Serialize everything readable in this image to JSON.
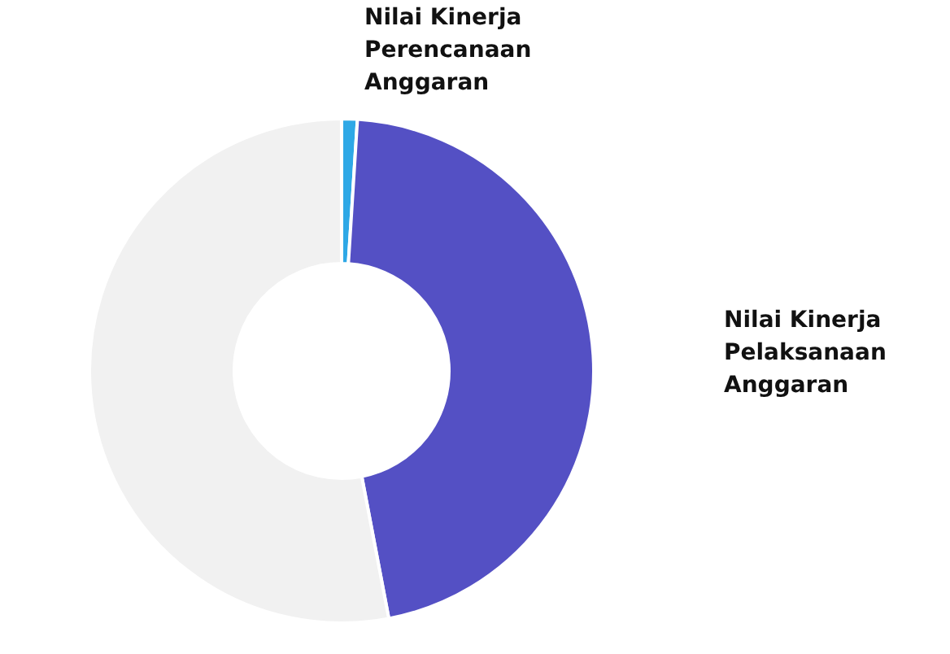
{
  "chart_data": {
    "type": "donut",
    "categories": [
      "Nilai Kinerja Perencanaan Anggaran",
      "Nilai Kinerja Pelaksanaan Anggaran",
      null
    ],
    "values": [
      1,
      46,
      53
    ],
    "colors": [
      "#2ea8e6",
      "#5450c4",
      "#f1f1f1"
    ],
    "legend": false
  }
}
